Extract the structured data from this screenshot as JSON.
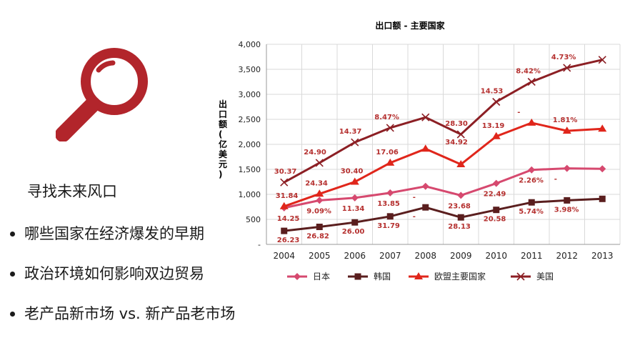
{
  "left_panel": {
    "icon": "magnifier-icon",
    "subtitle": "寻找未来风口",
    "bullets": [
      "哪些国家在经济爆发的早期",
      "政治环境如何影响双边贸易",
      "老产品新市场 vs. 新产品老市场"
    ]
  },
  "colors": {
    "accent": "#b2252b",
    "japan": "#d6496f",
    "korea": "#5a1e1e",
    "eu": "#e0261b",
    "usa": "#8c1f24",
    "label": "#b5302f"
  },
  "chart_data": {
    "type": "line",
    "title": "出口额 - 主要国家",
    "xlabel": "",
    "ylabel": "出口额(亿美元)",
    "categories": [
      "2004",
      "2005",
      "2006",
      "2007",
      "2008",
      "2009",
      "2010",
      "2011",
      "2012",
      "2013"
    ],
    "ylim": [
      0,
      4000
    ],
    "yticks": [
      0,
      500,
      1000,
      1500,
      2000,
      2500,
      3000,
      3500,
      4000
    ],
    "ytick_labels": [
      "-",
      "500",
      "1,000",
      "1,500",
      "2,000",
      "2,500",
      "3,000",
      "3,500",
      "4,000"
    ],
    "grid": true,
    "legend_position": "bottom",
    "series": [
      {
        "name": "日本",
        "key": "japan",
        "marker": "diamond",
        "values": [
          730,
          880,
          930,
          1030,
          1160,
          980,
          1220,
          1490,
          1520,
          1510
        ],
        "labels": [
          "14.25",
          "9.09%",
          "11.34",
          "13.85",
          "-",
          "23.68",
          "22.49",
          "2.26%",
          "-",
          ""
        ]
      },
      {
        "name": "韩国",
        "key": "korea",
        "marker": "square",
        "values": [
          270,
          350,
          440,
          560,
          740,
          540,
          690,
          840,
          880,
          910
        ],
        "labels": [
          "26.23",
          "26.82",
          "26.00",
          "31.79",
          "-",
          "28.13",
          "20.58",
          "5.74%",
          "3.98%",
          ""
        ]
      },
      {
        "name": "欧盟主要国家",
        "key": "eu",
        "marker": "triangle",
        "values": [
          760,
          1010,
          1250,
          1630,
          1910,
          1600,
          2160,
          2430,
          2270,
          2310
        ],
        "labels": [
          "31.84",
          "24.34",
          "30.40",
          "17.06",
          "",
          "",
          "13.19",
          "-",
          "1.81%",
          ""
        ]
      },
      {
        "name": "美国",
        "key": "usa",
        "marker": "x",
        "values": [
          1240,
          1630,
          2040,
          2330,
          2540,
          2200,
          2850,
          3250,
          3530,
          3690
        ],
        "labels": [
          "30.37",
          "24.90",
          "14.37",
          "8.47%",
          "",
          "28.30\n34.92",
          "14.53",
          "8.42%",
          "4.73%",
          ""
        ]
      }
    ]
  }
}
